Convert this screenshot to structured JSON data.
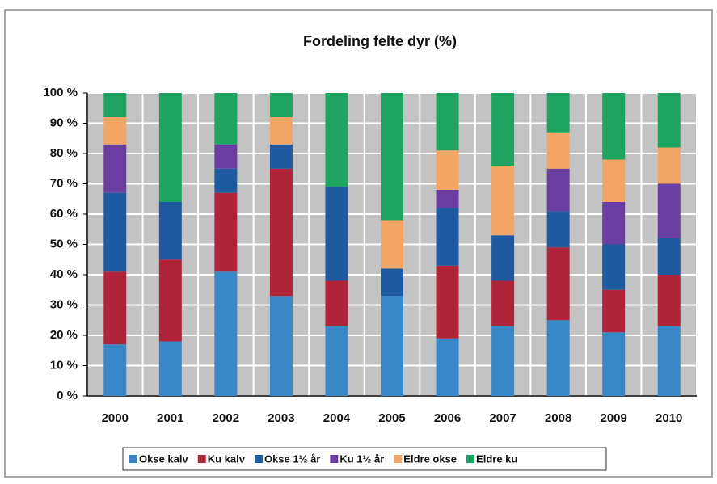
{
  "chart_data": {
    "type": "stacked-bar",
    "title": "Fordeling felte dyr (%)",
    "categories": [
      "2000",
      "2001",
      "2002",
      "2003",
      "2004",
      "2005",
      "2006",
      "2007",
      "2008",
      "2009",
      "2010"
    ],
    "series": [
      {
        "name": "Okse kalv",
        "color": "#3a87c8",
        "values": [
          17,
          18,
          41,
          33,
          23,
          33,
          19,
          23,
          25,
          21,
          23
        ]
      },
      {
        "name": "Ku kalv",
        "color": "#b0243a",
        "values": [
          24,
          27,
          26,
          42,
          15,
          0,
          24,
          15,
          24,
          14,
          17
        ]
      },
      {
        "name": "Okse 1½ år",
        "color": "#1f5aa0",
        "values": [
          26,
          19,
          8,
          8,
          31,
          9,
          19,
          15,
          12,
          15,
          12
        ]
      },
      {
        "name": "Ku 1½ år",
        "color": "#6a3ea0",
        "values": [
          16,
          0,
          8,
          0,
          0,
          0,
          6,
          0,
          14,
          14,
          18
        ]
      },
      {
        "name": "Eldre okse",
        "color": "#f2a565",
        "values": [
          9,
          0,
          0,
          9,
          0,
          16,
          13,
          23,
          12,
          14,
          12
        ]
      },
      {
        "name": "Eldre ku",
        "color": "#1fa360",
        "values": [
          8,
          36,
          17,
          8,
          31,
          42,
          19,
          24,
          13,
          22,
          18
        ]
      }
    ],
    "ylim": [
      0,
      100
    ],
    "yticks": [
      {
        "value": 0,
        "label": "0 %"
      },
      {
        "value": 10,
        "label": "10 %"
      },
      {
        "value": 20,
        "label": "20 %"
      },
      {
        "value": 30,
        "label": "30 %"
      },
      {
        "value": 40,
        "label": "40 %"
      },
      {
        "value": 50,
        "label": "50 %"
      },
      {
        "value": 60,
        "label": "60 %"
      },
      {
        "value": 70,
        "label": "70 %"
      },
      {
        "value": 80,
        "label": "80 %"
      },
      {
        "value": 90,
        "label": "90 %"
      },
      {
        "value": 100,
        "label": "100 %"
      }
    ],
    "grid": true
  }
}
